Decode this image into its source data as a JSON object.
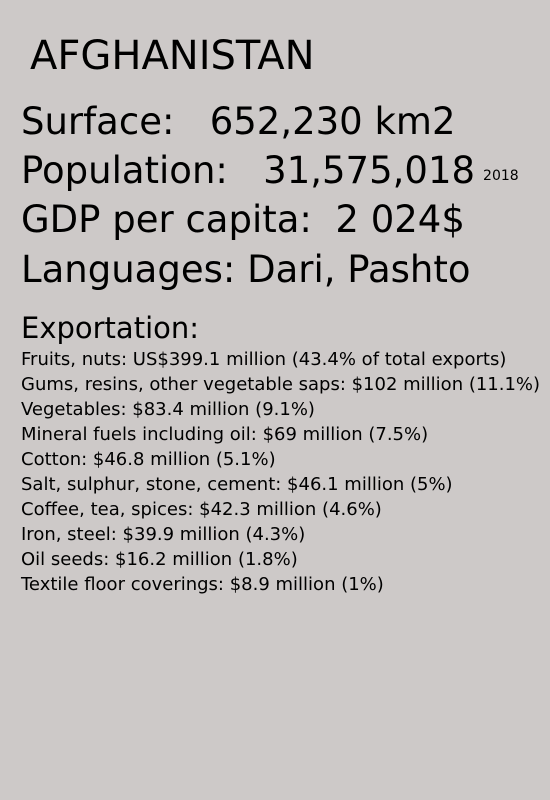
{
  "country": {
    "name": "AFGHANISTAN"
  },
  "stats": {
    "surface_label": "Surface:",
    "surface_value": "652,230 km2",
    "population_label": "Population:",
    "population_value": "31,575,018",
    "population_year": "2018",
    "gdp_label": "GDP per capita:",
    "gdp_value": "2 024$",
    "languages_label": "Languages:",
    "languages_value": "Dari, Pashto"
  },
  "exports": {
    "heading": "Exportation:",
    "items": [
      "Fruits, nuts: US$399.1 million (43.4% of total exports)",
      "Gums, resins, other vegetable saps: $102 million (11.1%)",
      "Vegetables: $83.4 million (9.1%)",
      "Mineral fuels including oil: $69 million (7.5%)",
      "Cotton: $46.8 million (5.1%)",
      "Salt, sulphur, stone, cement: $46.1 million (5%)",
      "Coffee, tea, spices: $42.3 million (4.6%)",
      "Iron, steel: $39.9 million (4.3%)",
      "Oil seeds: $16.2 million (1.8%)",
      "Textile floor coverings: $8.9 million (1%)"
    ]
  }
}
